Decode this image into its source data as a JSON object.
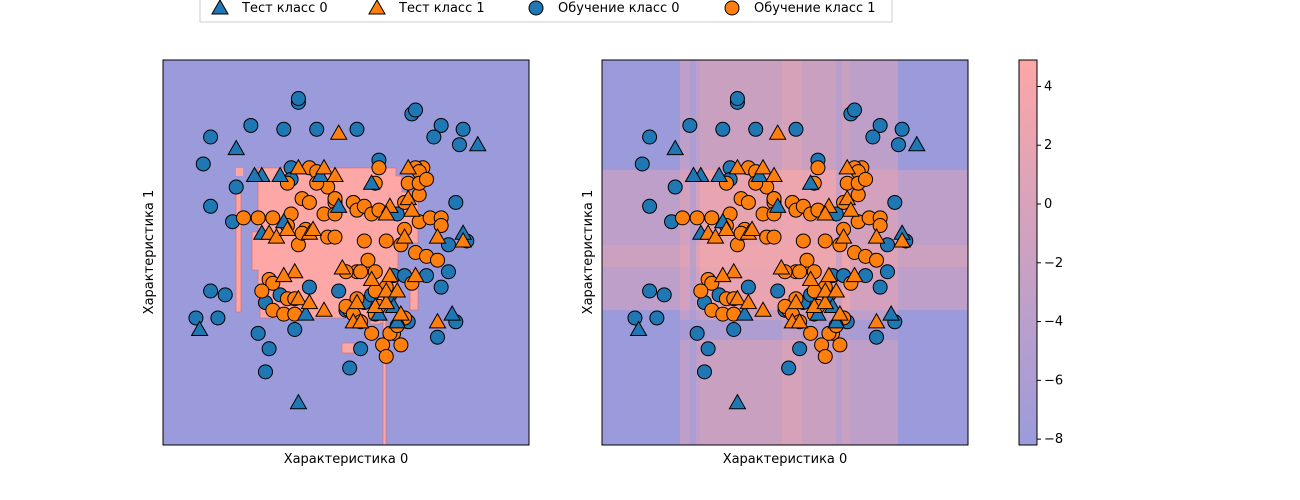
{
  "chart_data": [
    {
      "type": "scatter",
      "subtype": "decision-region",
      "xlabel": "Характеристика 0",
      "ylabel": "Характеристика 1",
      "x_ticks": "none",
      "y_ticks": "none",
      "background_color": "#9b9bdc",
      "region_color": "#fda7a7",
      "series": [
        {
          "name": "Обучение класс 0",
          "marker": "circle",
          "color": "#1f77b4",
          "points": [
            [
              0.13,
              0.8
            ],
            [
              0.11,
              0.73
            ],
            [
              0.13,
              0.62
            ],
            [
              0.37,
              0.89
            ],
            [
              0.35,
              0.72
            ],
            [
              0.35,
              0.69
            ],
            [
              0.2,
              0.67
            ],
            [
              0.19,
              0.58
            ],
            [
              0.17,
              0.39
            ],
            [
              0.13,
              0.4
            ],
            [
              0.09,
              0.33
            ],
            [
              0.15,
              0.33
            ],
            [
              0.24,
              0.83
            ],
            [
              0.33,
              0.82
            ],
            [
              0.37,
              0.9
            ],
            [
              0.42,
              0.82
            ],
            [
              0.53,
              0.82
            ],
            [
              0.68,
              0.86
            ],
            [
              0.69,
              0.87
            ],
            [
              0.76,
              0.83
            ],
            [
              0.74,
              0.8
            ],
            [
              0.82,
              0.82
            ],
            [
              0.81,
              0.78
            ],
            [
              0.8,
              0.63
            ],
            [
              0.59,
              0.74
            ],
            [
              0.64,
              0.6
            ],
            [
              0.63,
              0.44
            ],
            [
              0.62,
              0.39
            ],
            [
              0.66,
              0.44
            ],
            [
              0.72,
              0.44
            ],
            [
              0.76,
              0.41
            ],
            [
              0.78,
              0.45
            ],
            [
              0.83,
              0.53
            ],
            [
              0.78,
              0.52
            ],
            [
              0.5,
              0.35
            ],
            [
              0.48,
              0.4
            ],
            [
              0.55,
              0.37
            ],
            [
              0.28,
              0.37
            ],
            [
              0.32,
              0.39
            ],
            [
              0.4,
              0.41
            ],
            [
              0.67,
              0.32
            ],
            [
              0.75,
              0.28
            ],
            [
              0.8,
              0.32
            ],
            [
              0.26,
              0.29
            ],
            [
              0.36,
              0.3
            ],
            [
              0.29,
              0.25
            ],
            [
              0.54,
              0.25
            ],
            [
              0.28,
              0.19
            ],
            [
              0.51,
              0.2
            ],
            [
              0.57,
              0.39
            ]
          ]
        },
        {
          "name": "Обучение класс 1",
          "marker": "circle",
          "color": "#ff7f0e",
          "points": [
            [
              0.4,
              0.72
            ],
            [
              0.42,
              0.71
            ],
            [
              0.45,
              0.67
            ],
            [
              0.42,
              0.68
            ],
            [
              0.47,
              0.64
            ],
            [
              0.47,
              0.63
            ],
            [
              0.44,
              0.6
            ],
            [
              0.47,
              0.6
            ],
            [
              0.52,
              0.63
            ],
            [
              0.52,
              0.63
            ],
            [
              0.53,
              0.61
            ],
            [
              0.55,
              0.62
            ],
            [
              0.57,
              0.6
            ],
            [
              0.59,
              0.61
            ],
            [
              0.66,
              0.63
            ],
            [
              0.7,
              0.65
            ],
            [
              0.71,
              0.72
            ],
            [
              0.59,
              0.72
            ],
            [
              0.58,
              0.68
            ],
            [
              0.39,
              0.56
            ],
            [
              0.37,
              0.52
            ],
            [
              0.38,
              0.55
            ],
            [
              0.35,
              0.6
            ],
            [
              0.34,
              0.57
            ],
            [
              0.45,
              0.54
            ],
            [
              0.47,
              0.54
            ],
            [
              0.56,
              0.48
            ],
            [
              0.53,
              0.45
            ],
            [
              0.55,
              0.53
            ],
            [
              0.61,
              0.53
            ],
            [
              0.65,
              0.52
            ],
            [
              0.69,
              0.5
            ],
            [
              0.72,
              0.49
            ],
            [
              0.75,
              0.48
            ],
            [
              0.68,
              0.42
            ],
            [
              0.61,
              0.41
            ],
            [
              0.58,
              0.4
            ],
            [
              0.53,
              0.38
            ],
            [
              0.51,
              0.35
            ],
            [
              0.5,
              0.36
            ],
            [
              0.52,
              0.34
            ],
            [
              0.58,
              0.34
            ],
            [
              0.59,
              0.36
            ],
            [
              0.54,
              0.32
            ],
            [
              0.6,
              0.26
            ],
            [
              0.63,
              0.29
            ],
            [
              0.29,
              0.43
            ],
            [
              0.3,
              0.42
            ],
            [
              0.34,
              0.38
            ],
            [
              0.36,
              0.38
            ],
            [
              0.57,
              0.29
            ],
            [
              0.62,
              0.29
            ],
            [
              0.61,
              0.23
            ],
            [
              0.65,
              0.26
            ],
            [
              0.22,
              0.59
            ],
            [
              0.26,
              0.59
            ],
            [
              0.3,
              0.59
            ],
            [
              0.34,
              0.68
            ],
            [
              0.38,
              0.64
            ],
            [
              0.4,
              0.63
            ],
            [
              0.47,
              0.64
            ],
            [
              0.69,
              0.72
            ],
            [
              0.7,
              0.71
            ],
            [
              0.67,
              0.68
            ],
            [
              0.7,
              0.68
            ],
            [
              0.72,
              0.69
            ],
            [
              0.27,
              0.4
            ],
            [
              0.3,
              0.35
            ],
            [
              0.33,
              0.34
            ],
            [
              0.36,
              0.34
            ],
            [
              0.5,
              0.45
            ],
            [
              0.54,
              0.45
            ],
            [
              0.58,
              0.45
            ],
            [
              0.66,
              0.33
            ],
            [
              0.66,
              0.56
            ],
            [
              0.7,
              0.58
            ],
            [
              0.73,
              0.59
            ],
            [
              0.76,
              0.59
            ],
            [
              0.76,
              0.57
            ],
            [
              0.64,
              0.31
            ]
          ]
        },
        {
          "name": "Тест класс 0",
          "marker": "triangle",
          "color": "#1f77b4",
          "points": [
            [
              0.2,
              0.77
            ],
            [
              0.27,
              0.7
            ],
            [
              0.32,
              0.7
            ],
            [
              0.43,
              0.7
            ],
            [
              0.57,
              0.68
            ],
            [
              0.86,
              0.78
            ],
            [
              0.82,
              0.55
            ],
            [
              0.27,
              0.55
            ],
            [
              0.33,
              0.58
            ],
            [
              0.48,
              0.62
            ],
            [
              0.63,
              0.36
            ],
            [
              0.1,
              0.3
            ],
            [
              0.64,
              0.32
            ],
            [
              0.79,
              0.34
            ],
            [
              0.37,
              0.11
            ],
            [
              0.39,
              0.34
            ],
            [
              0.59,
              0.34
            ],
            [
              0.25,
              0.7
            ]
          ]
        },
        {
          "name": "Тест класс 1",
          "marker": "triangle",
          "color": "#ff7f0e",
          "points": [
            [
              0.48,
              0.81
            ],
            [
              0.37,
              0.72
            ],
            [
              0.44,
              0.72
            ],
            [
              0.47,
              0.7
            ],
            [
              0.67,
              0.72
            ],
            [
              0.67,
              0.64
            ],
            [
              0.62,
              0.62
            ],
            [
              0.61,
              0.6
            ],
            [
              0.68,
              0.61
            ],
            [
              0.29,
              0.55
            ],
            [
              0.31,
              0.54
            ],
            [
              0.34,
              0.56
            ],
            [
              0.4,
              0.55
            ],
            [
              0.41,
              0.56
            ],
            [
              0.66,
              0.54
            ],
            [
              0.75,
              0.54
            ],
            [
              0.82,
              0.53
            ],
            [
              0.49,
              0.46
            ],
            [
              0.57,
              0.43
            ],
            [
              0.62,
              0.44
            ],
            [
              0.53,
              0.37
            ],
            [
              0.58,
              0.36
            ],
            [
              0.61,
              0.37
            ],
            [
              0.65,
              0.34
            ],
            [
              0.36,
              0.45
            ],
            [
              0.33,
              0.44
            ],
            [
              0.37,
              0.38
            ],
            [
              0.4,
              0.37
            ],
            [
              0.44,
              0.35
            ],
            [
              0.52,
              0.32
            ],
            [
              0.54,
              0.32
            ],
            [
              0.75,
              0.32
            ],
            [
              0.61,
              0.4
            ],
            [
              0.64,
              0.4
            ],
            [
              0.69,
              0.44
            ]
          ]
        }
      ]
    },
    {
      "type": "scatter",
      "subtype": "decision-function",
      "xlabel": "Характеристика 0",
      "ylabel": "Характеристика 1",
      "x_ticks": "none",
      "y_ticks": "none",
      "same_points_as": 0
    }
  ],
  "legend": {
    "placement": "top-center",
    "items": [
      {
        "label": "Тест класс 0",
        "marker": "triangle",
        "color": "#1f77b4"
      },
      {
        "label": "Тест класс 1",
        "marker": "triangle",
        "color": "#ff7f0e"
      },
      {
        "label": "Обучение класс 0",
        "marker": "circle",
        "color": "#1f77b4"
      },
      {
        "label": "Обучение класс 1",
        "marker": "circle",
        "color": "#ff7f0e"
      }
    ]
  },
  "colorbar": {
    "ticks": [
      "4",
      "2",
      "0",
      "−2",
      "−4",
      "−6",
      "−8"
    ],
    "range": [
      -8.2,
      4.9
    ],
    "colors": [
      "#9b9bdc",
      "#fda7a7"
    ]
  }
}
